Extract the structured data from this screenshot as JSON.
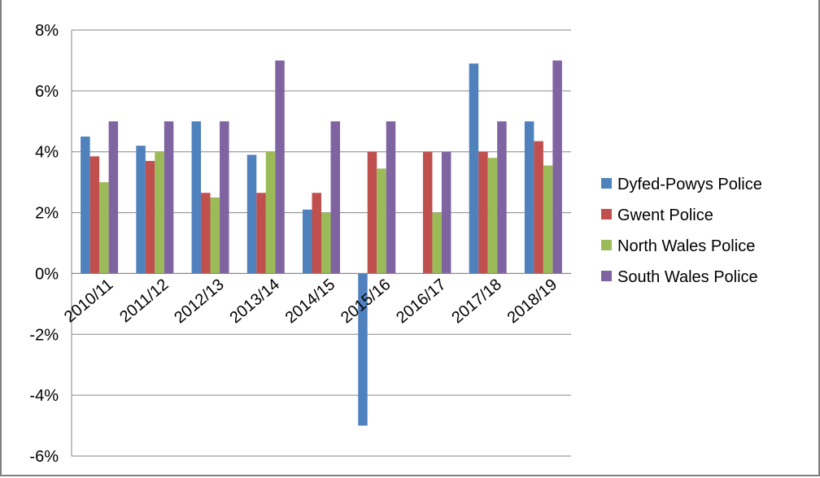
{
  "chart_data": {
    "type": "bar",
    "title": "",
    "xlabel": "",
    "ylabel": "",
    "categories": [
      "2010/11",
      "2011/12",
      "2012/13",
      "2013/14",
      "2014/15",
      "2015/16",
      "2016/17",
      "2017/18",
      "2018/19"
    ],
    "series": [
      {
        "name": "Dyfed-Powys Police",
        "color": "#4f81bd",
        "values": [
          4.5,
          4.2,
          5.0,
          3.9,
          2.1,
          -5.0,
          0,
          6.9,
          5.0
        ]
      },
      {
        "name": "Gwent Police",
        "color": "#c0504d",
        "values": [
          3.85,
          3.7,
          2.65,
          2.65,
          2.65,
          4.0,
          4.0,
          4.0,
          4.35
        ]
      },
      {
        "name": "North Wales Police",
        "color": "#9bbb59",
        "values": [
          3.0,
          4.0,
          2.5,
          4.0,
          2.0,
          3.45,
          2.0,
          3.8,
          3.55
        ]
      },
      {
        "name": "South Wales Police",
        "color": "#8064a2",
        "values": [
          5.0,
          5.0,
          5.0,
          7.0,
          5.0,
          5.0,
          4.0,
          5.0,
          7.0
        ]
      }
    ],
    "y_unit": "%",
    "ylim": [
      -6,
      8
    ],
    "yticks": [
      -6,
      -4,
      -2,
      0,
      2,
      4,
      6,
      8
    ],
    "ytick_labels": [
      "-6%",
      "-4%",
      "-2%",
      "0%",
      "2%",
      "4%",
      "6%",
      "8%"
    ],
    "grid": true,
    "legend_position": "right"
  },
  "colors": {
    "gridline": "#868686",
    "axis": "#868686",
    "frame": "#7f7f7f"
  }
}
